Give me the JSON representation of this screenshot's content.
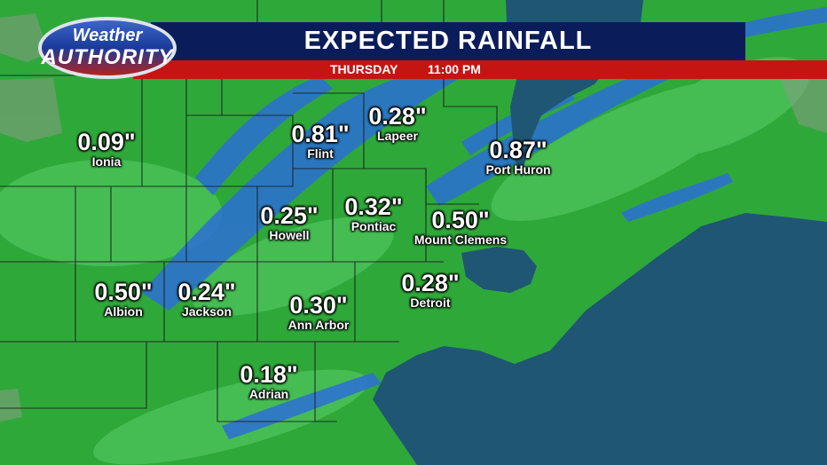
{
  "logo": {
    "line1": "Weather",
    "line2": "AUTHORITY"
  },
  "banner": {
    "title": "EXPECTED RAINFALL",
    "day": "THURSDAY",
    "time": "11:00 PM"
  },
  "locations": [
    {
      "name": "Ionia",
      "amount": "0.09\""
    },
    {
      "name": "Flint",
      "amount": "0.81\""
    },
    {
      "name": "Lapeer",
      "amount": "0.28\""
    },
    {
      "name": "Port Huron",
      "amount": "0.87\""
    },
    {
      "name": "Howell",
      "amount": "0.25\""
    },
    {
      "name": "Pontiac",
      "amount": "0.32\""
    },
    {
      "name": "Mount Clemens",
      "amount": "0.50\""
    },
    {
      "name": "Albion",
      "amount": "0.50\""
    },
    {
      "name": "Jackson",
      "amount": "0.24\""
    },
    {
      "name": "Ann Arbor",
      "amount": "0.30\""
    },
    {
      "name": "Detroit",
      "amount": "0.28\""
    },
    {
      "name": "Adrian",
      "amount": "0.18\""
    }
  ],
  "colors": {
    "rain_light": "#2fa83a",
    "rain_moderate": "#2b6fd6",
    "water": "#1f5673",
    "banner_blue": "#0b1c5a",
    "banner_red": "#c41512"
  }
}
